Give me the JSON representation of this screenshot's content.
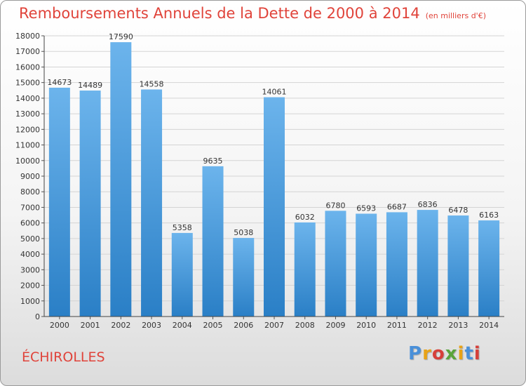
{
  "header": {
    "title": "Remboursements Annuels de la Dette de 2000 à 2014",
    "subtitle": "(en milliers d'€)"
  },
  "footer": {
    "commune": "ÉCHIROLLES",
    "logo_letters": [
      "P",
      "r",
      "o",
      "x",
      "i",
      "t",
      "i"
    ],
    "logo_colors": [
      "#4a90d9",
      "#e8a317",
      "#d6403a",
      "#5aa43a",
      "#e8a317",
      "#4a90d9",
      "#d6403a"
    ]
  },
  "colors": {
    "title": "#e0433a",
    "bar_top": "#6cb4ec",
    "bar_bottom": "#2a7fc6",
    "grid": "#d4d4d4",
    "axis_text": "#333333"
  },
  "chart_data": {
    "type": "bar",
    "title": "Remboursements Annuels de la Dette de 2000 à 2014",
    "subtitle": "(en milliers d'€)",
    "categories": [
      "2000",
      "2001",
      "2002",
      "2003",
      "2004",
      "2005",
      "2006",
      "2007",
      "2008",
      "2009",
      "2010",
      "2011",
      "2012",
      "2013",
      "2014"
    ],
    "values": [
      14673,
      14489,
      17590,
      14558,
      5358,
      9635,
      5038,
      14061,
      6032,
      6780,
      6593,
      6687,
      6836,
      6478,
      6163
    ],
    "ylim": [
      0,
      18000
    ],
    "yticks": [
      0,
      1000,
      2000,
      3000,
      4000,
      5000,
      6000,
      7000,
      8000,
      9000,
      10000,
      11000,
      12000,
      13000,
      14000,
      15000,
      16000,
      17000,
      18000
    ],
    "grid": true,
    "legend": "none"
  }
}
